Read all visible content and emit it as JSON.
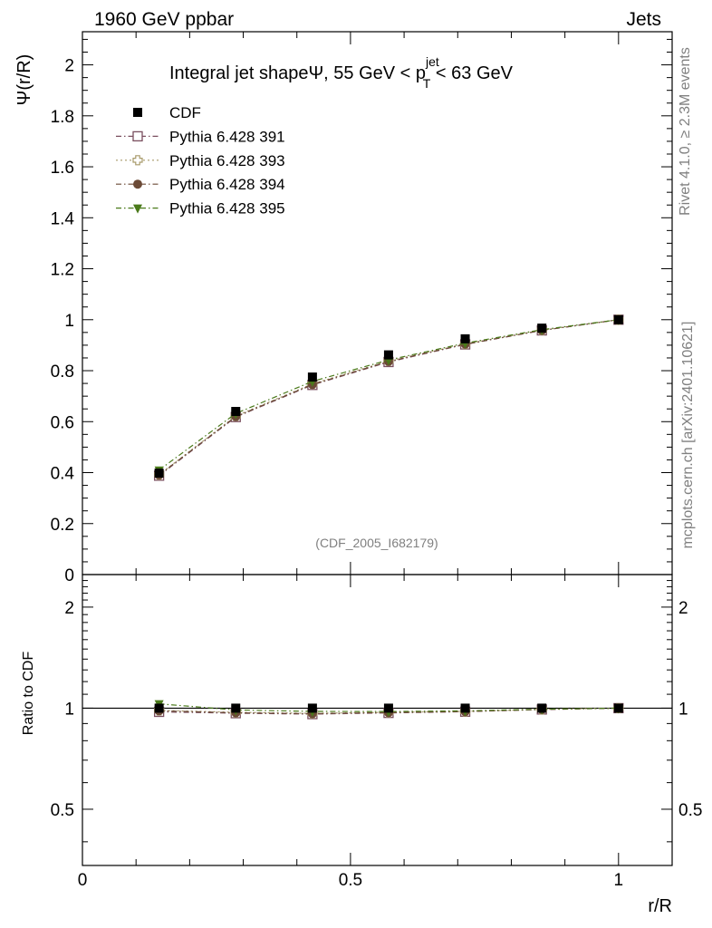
{
  "header": {
    "left": "1960 GeV ppbar",
    "right": "Jets"
  },
  "side": {
    "rivet": "Rivet 4.1.0, ≥ 2.3M events",
    "mcplots": "mcplots.cern.ch [arXiv:2401.10621]"
  },
  "chart_data": {
    "type": "line",
    "title_main": "Integral jet shapeΨ, 55 GeV < p",
    "title_sup": "jet",
    "title_sub": "T",
    "title_end": " < 63 GeV",
    "analysis_label": "(CDF_2005_I682179)",
    "xlabel": "r/R",
    "ylabel": "Ψ(r/R)",
    "ratio_ylabel": "Ratio to CDF",
    "xlim": [
      0,
      1.1
    ],
    "ylim": [
      0,
      2.13
    ],
    "ratio_ylim": [
      0.34,
      2.5
    ],
    "x_ticks": [
      "0",
      "0.5",
      "1"
    ],
    "y_ticks": [
      "0",
      "0.2",
      "0.4",
      "0.6",
      "0.8",
      "1",
      "1.2",
      "1.4",
      "1.6",
      "1.8",
      "2"
    ],
    "ratio_ticks": [
      "0.5",
      "1",
      "2"
    ],
    "x": [
      0.143,
      0.286,
      0.429,
      0.571,
      0.714,
      0.857,
      1.0
    ],
    "series": [
      {
        "name": "CDF",
        "color": "#000000",
        "marker": "filled-square",
        "line": "none",
        "values": [
          0.398,
          0.64,
          0.775,
          0.862,
          0.925,
          0.967,
          1.0
        ],
        "ratio": [
          1.0,
          1.0,
          1.0,
          1.0,
          1.0,
          1.0,
          1.0
        ]
      },
      {
        "name": "Pythia 6.428 391",
        "color": "#7a4f5f",
        "marker": "open-square",
        "line": "dashdot",
        "values": [
          0.388,
          0.618,
          0.744,
          0.834,
          0.903,
          0.958,
          1.0
        ],
        "ratio": [
          0.975,
          0.966,
          0.96,
          0.968,
          0.976,
          0.991,
          1.0
        ]
      },
      {
        "name": "Pythia 6.428 393",
        "color": "#a89a6a",
        "marker": "open-cross",
        "line": "dotted",
        "values": [
          0.392,
          0.622,
          0.748,
          0.838,
          0.905,
          0.959,
          1.0
        ],
        "ratio": [
          0.985,
          0.972,
          0.965,
          0.972,
          0.978,
          0.992,
          1.0
        ]
      },
      {
        "name": "Pythia 6.428 394",
        "color": "#6b4a36",
        "marker": "filled-circle",
        "line": "dashdot",
        "values": [
          0.391,
          0.62,
          0.746,
          0.836,
          0.904,
          0.958,
          1.0
        ],
        "ratio": [
          0.982,
          0.969,
          0.963,
          0.97,
          0.977,
          0.991,
          1.0
        ]
      },
      {
        "name": "Pythia 6.428 395",
        "color": "#4a7a1a",
        "marker": "filled-triangle-down",
        "line": "dashdot",
        "values": [
          0.41,
          0.632,
          0.758,
          0.842,
          0.908,
          0.961,
          1.0
        ],
        "ratio": [
          1.03,
          0.988,
          0.978,
          0.977,
          0.982,
          0.993,
          1.0
        ]
      }
    ]
  }
}
